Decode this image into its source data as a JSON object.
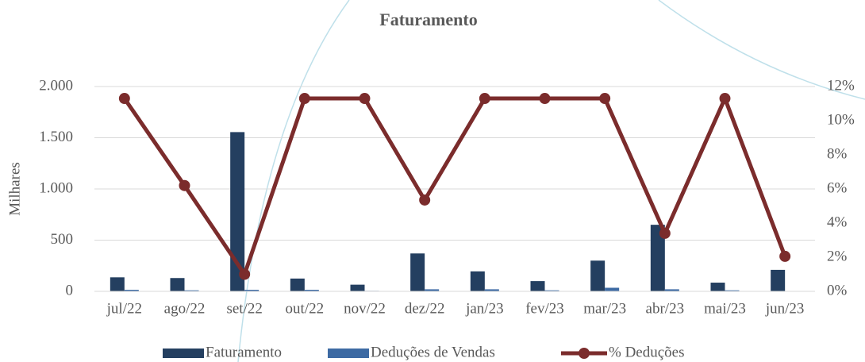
{
  "chart_data": {
    "type": "bar_line",
    "title": "Faturamento",
    "y_label": "Milhares",
    "categories": [
      "jul/22",
      "ago/22",
      "set/22",
      "out/22",
      "nov/22",
      "dez/22",
      "jan/23",
      "fev/23",
      "mar/23",
      "abr/23",
      "mai/23",
      "jun/23"
    ],
    "series": [
      {
        "name": "Faturamento",
        "type": "bar",
        "color": "#243f60",
        "values": [
          137,
          130,
          1555,
          125,
          65,
          370,
          195,
          100,
          300,
          650,
          85,
          210
        ]
      },
      {
        "name": "Deduções de Vendas",
        "type": "bar",
        "color": "#3d6aa3",
        "values": [
          15,
          10,
          15,
          15,
          5,
          20,
          20,
          10,
          35,
          20,
          10,
          2
        ]
      },
      {
        "name": "% Deduções",
        "type": "line",
        "axis": "y2",
        "color": "#7b2c2c",
        "values": [
          11.3,
          6.2,
          1.0,
          11.3,
          11.3,
          5.35,
          11.3,
          11.3,
          11.3,
          3.4,
          11.3,
          2.05
        ]
      }
    ],
    "ylim": [
      0,
      2000
    ],
    "yticks": [
      0,
      500,
      {
        "value": 1000,
        "label": "1.000"
      },
      {
        "value": 1500,
        "label": "1.500"
      },
      {
        "value": 2000,
        "label": "2.000"
      }
    ],
    "y2lim": [
      0,
      12
    ],
    "y2ticks": [
      {
        "value": 0,
        "label": "0%"
      },
      {
        "value": 2,
        "label": "2%"
      },
      {
        "value": 4,
        "label": "4%"
      },
      {
        "value": 6,
        "label": "6%"
      },
      {
        "value": 8,
        "label": "8%"
      },
      {
        "value": 10,
        "label": "10%"
      },
      {
        "value": 12,
        "label": "12%"
      }
    ],
    "grid": true,
    "legend": "bottom"
  }
}
